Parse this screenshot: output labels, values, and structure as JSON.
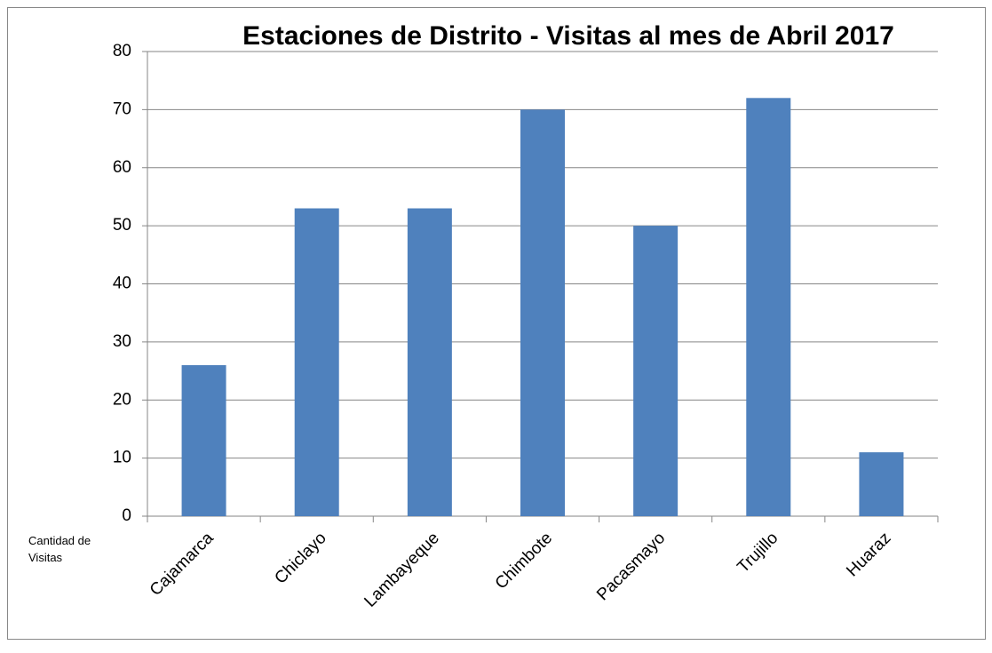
{
  "chart_data": {
    "type": "bar",
    "title": "Estaciones de Distrito - Visitas al mes de Abril 2017",
    "y_label": "Cantidad de  Visitas",
    "categories": [
      "Cajamarca",
      "Chiclayo",
      "Lambayeque",
      "Chimbote",
      "Pacasmayo",
      "Trujillo",
      "Huaraz"
    ],
    "values": [
      26,
      53,
      53,
      70,
      50,
      72,
      11
    ],
    "color": "#4f81bd",
    "ylim": [
      0,
      80
    ],
    "yticks": [
      0,
      10,
      20,
      30,
      40,
      50,
      60,
      70,
      80
    ],
    "grid": true
  }
}
